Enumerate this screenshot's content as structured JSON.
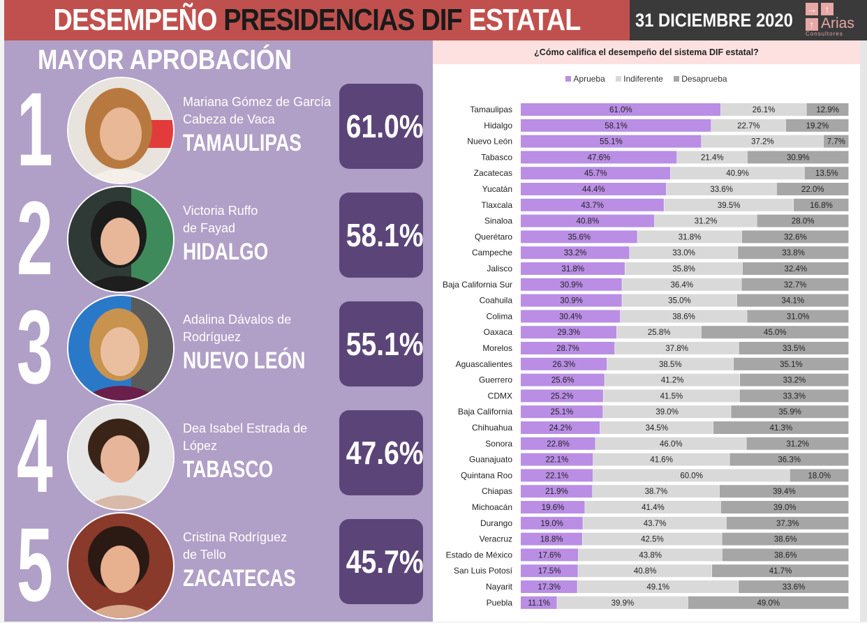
{
  "header": {
    "title_part1": "DESEMPEÑO",
    "title_part2": "PRESIDENCIAS DIF",
    "title_part3": "ESTATAL",
    "date": "31 DICIEMBRE 2020",
    "logo_name": "Arias",
    "logo_sub": "Consultores"
  },
  "left": {
    "title": "MAYOR APROBACIÓN",
    "ranks": [
      {
        "num": "1",
        "name_line1": "Mariana Gómez de García",
        "name_line2": "Cabeza de Vaca",
        "state": "TAMAULIPAS",
        "pct": "61.0%"
      },
      {
        "num": "2",
        "name_line1": "Victoria Ruffo",
        "name_line2": "de Fayad",
        "state": "HIDALGO",
        "pct": "58.1%"
      },
      {
        "num": "3",
        "name_line1": "Adalina Dávalos de",
        "name_line2": "Rodríguez",
        "state": "NUEVO LEÓN",
        "pct": "55.1%"
      },
      {
        "num": "4",
        "name_line1": "Dea Isabel Estrada de",
        "name_line2": "López",
        "state": "TABASCO",
        "pct": "47.6%"
      },
      {
        "num": "5",
        "name_line1": "Cristina Rodríguez",
        "name_line2": "de Tello",
        "state": "ZACATECAS",
        "pct": "45.7%"
      }
    ]
  },
  "colors": {
    "header_red": "#c0504d",
    "left_bg": "#b09fc6",
    "pct_box": "#5b4578",
    "aprueba": "#b98ee4",
    "indiferente": "#d9d9d9",
    "desaprueba": "#a6a6a6"
  },
  "chart_data": {
    "type": "bar",
    "orientation": "horizontal-stacked-100",
    "title": "¿Cómo califica el desempeño del sistema DIF estatal?",
    "legend": [
      "Aprueba",
      "Indiferente",
      "Desaprueba"
    ],
    "legend_position": "top",
    "categories": [
      "Tamaulipas",
      "Hidalgo",
      "Nuevo León",
      "Tabasco",
      "Zacatecas",
      "Yucatán",
      "Tlaxcala",
      "Sinaloa",
      "Querétaro",
      "Campeche",
      "Jalisco",
      "Baja California Sur",
      "Coahuila",
      "Colima",
      "Oaxaca",
      "Morelos",
      "Aguascalientes",
      "Guerrero",
      "CDMX",
      "Baja California",
      "Chihuahua",
      "Sonora",
      "Guanajuato",
      "Quintana Roo",
      "Chiapas",
      "Michoacán",
      "Durango",
      "Veracruz",
      "Estado de México",
      "San Luis Potosí",
      "Nayarit",
      "Puebla"
    ],
    "series": [
      {
        "name": "Aprueba",
        "values": [
          61.0,
          58.1,
          55.1,
          47.6,
          45.7,
          44.4,
          43.7,
          40.8,
          35.6,
          33.2,
          31.8,
          30.9,
          30.9,
          30.4,
          29.3,
          28.7,
          26.3,
          25.6,
          25.2,
          25.1,
          24.2,
          22.8,
          22.1,
          22.1,
          21.9,
          19.6,
          19.0,
          18.8,
          17.6,
          17.5,
          17.3,
          11.1
        ]
      },
      {
        "name": "Indiferente",
        "values": [
          26.1,
          22.7,
          37.2,
          21.4,
          40.9,
          33.6,
          39.5,
          31.2,
          31.8,
          33.0,
          35.8,
          36.4,
          35.0,
          38.6,
          25.8,
          37.8,
          38.5,
          41.2,
          41.5,
          39.0,
          34.5,
          46.0,
          41.6,
          60.0,
          38.7,
          41.4,
          43.7,
          42.5,
          43.8,
          40.8,
          49.1,
          39.9
        ]
      },
      {
        "name": "Desaprueba",
        "values": [
          12.9,
          19.2,
          7.7,
          30.9,
          13.5,
          22.0,
          16.8,
          28.0,
          32.6,
          33.8,
          32.4,
          32.7,
          34.1,
          31.0,
          45.0,
          33.5,
          35.1,
          33.2,
          33.3,
          35.9,
          41.3,
          31.2,
          36.3,
          18.0,
          39.4,
          39.0,
          37.3,
          38.6,
          38.6,
          41.7,
          33.6,
          49.0
        ]
      }
    ],
    "value_format": "0.0%"
  }
}
